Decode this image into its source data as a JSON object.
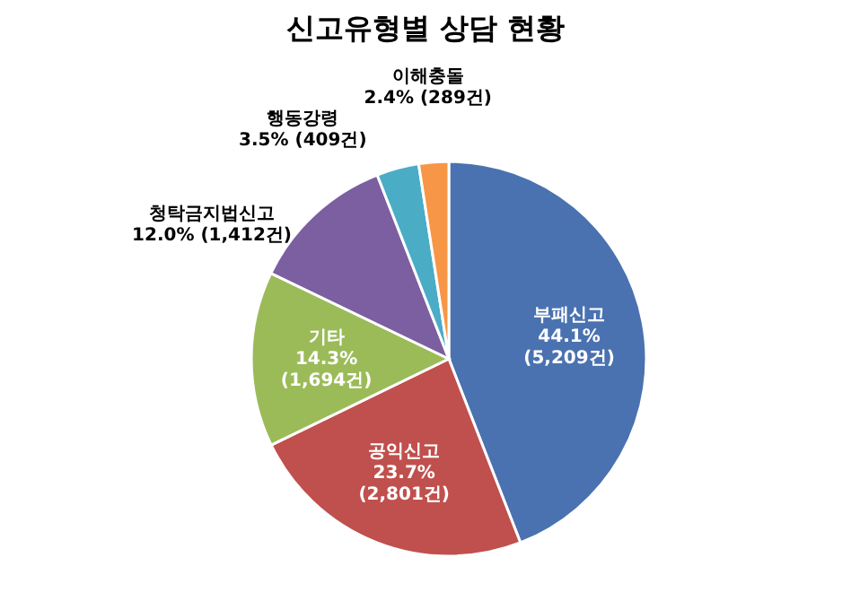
{
  "chart_data": {
    "type": "pie",
    "title": "신고유형별 상담 현황",
    "categories": [
      "부패신고",
      "공익신고",
      "기타",
      "청탁금지법신고",
      "행동강령",
      "이해충돌"
    ],
    "values": [
      5209,
      2801,
      1694,
      1412,
      409,
      289
    ],
    "value_labels": [
      "44.1% (5,209건)",
      "23.7% (2,801건)",
      "14.3% (1,694건)",
      "12.0% (1,412건)",
      "3.5% (409건)",
      "2.4% (289건)"
    ],
    "colors": [
      "#4a72b0",
      "#c0504d",
      "#9bbb59",
      "#7b5fa0",
      "#4bacc6",
      "#f79646"
    ]
  }
}
